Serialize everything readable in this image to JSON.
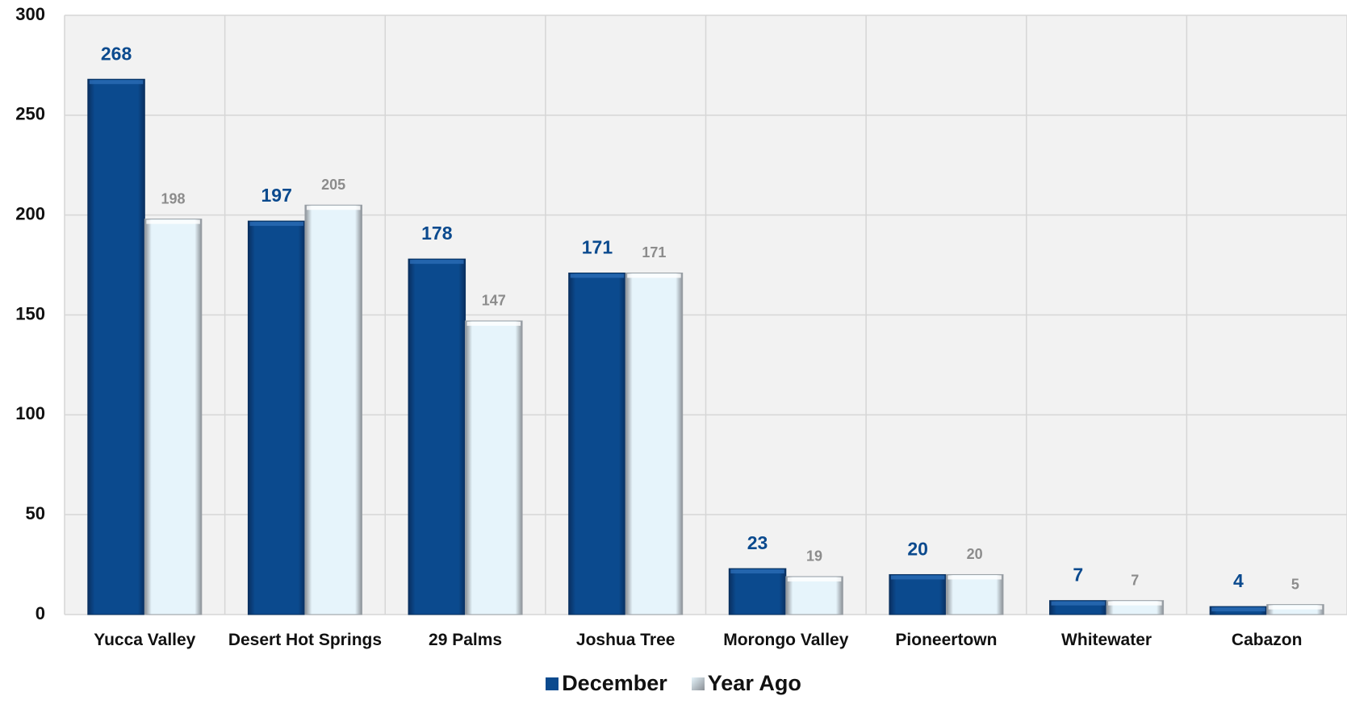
{
  "chart_data": {
    "type": "bar",
    "categories": [
      "Yucca Valley",
      "Desert Hot Springs",
      "29 Palms",
      "Joshua Tree",
      "Morongo Valley",
      "Pioneertown",
      "Whitewater",
      "Cabazon"
    ],
    "series": [
      {
        "name": "December",
        "color": "#0b4a8e",
        "values": [
          268,
          197,
          178,
          171,
          23,
          20,
          7,
          4
        ]
      },
      {
        "name": "Year Ago",
        "color": "#e6f4fb",
        "values": [
          198,
          205,
          147,
          171,
          19,
          20,
          7,
          5
        ]
      }
    ],
    "ylim": [
      0,
      300
    ],
    "yticks": [
      0,
      50,
      100,
      150,
      200,
      250,
      300
    ],
    "grid": true,
    "legend": "bottom"
  }
}
